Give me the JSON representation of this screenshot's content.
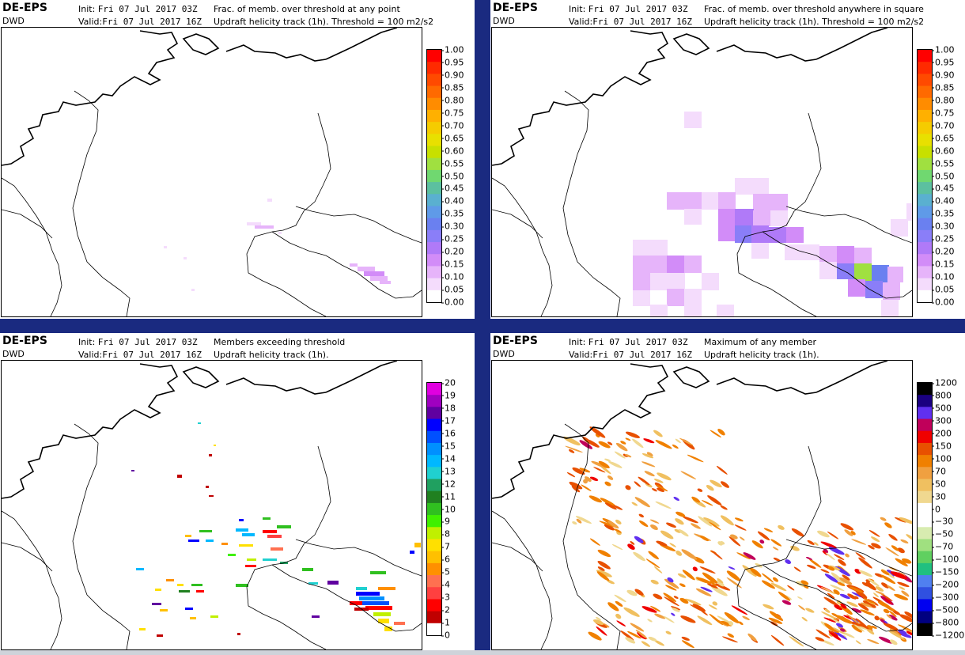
{
  "panels": [
    {
      "brand": "DE-EPS",
      "org": "DWD",
      "init_label": "Init:",
      "init_value": "Fri 07 Jul 2017 03Z",
      "valid_label": "Valid:",
      "valid_value": "Fri 07 Jul 2017 16Z",
      "line1": "Frac. of memb. over threshold at any point",
      "line2": "Updraft helicity track (1h). Threshold = 100 m2/s2",
      "colorbar": {
        "labels": [
          "1.00",
          "0.95",
          "0.90",
          "0.85",
          "0.80",
          "0.75",
          "0.70",
          "0.65",
          "0.60",
          "0.55",
          "0.50",
          "0.45",
          "0.40",
          "0.35",
          "0.30",
          "0.25",
          "0.20",
          "0.15",
          "0.10",
          "0.05",
          "0.00"
        ],
        "colors": [
          "#ff0000",
          "#ff2a00",
          "#ff4a00",
          "#ff6a00",
          "#ff8c00",
          "#ffb000",
          "#f5cc00",
          "#e8e000",
          "#c8e000",
          "#a0e040",
          "#70d870",
          "#5cc0a0",
          "#5ab0d0",
          "#5f9ae8",
          "#6a80f0",
          "#8a7ef8",
          "#b07af8",
          "#d28cf8",
          "#e6b4fa",
          "#f4dcfc",
          "#ffffff"
        ]
      }
    },
    {
      "brand": "DE-EPS",
      "org": "DWD",
      "init_label": "Init:",
      "init_value": "Fri 07 Jul 2017 03Z",
      "valid_label": "Valid:",
      "valid_value": "Fri 07 Jul 2017 16Z",
      "line1": "Frac. of memb. over threshold anywhere in square",
      "line2": "Updraft helicity track (1h). Threshold = 100 m2/s2",
      "colorbar": {
        "labels": [
          "1.00",
          "0.95",
          "0.90",
          "0.85",
          "0.80",
          "0.75",
          "0.70",
          "0.65",
          "0.60",
          "0.55",
          "0.50",
          "0.45",
          "0.40",
          "0.35",
          "0.30",
          "0.25",
          "0.20",
          "0.15",
          "0.10",
          "0.05",
          "0.00"
        ],
        "colors": [
          "#ff0000",
          "#ff2a00",
          "#ff4a00",
          "#ff6a00",
          "#ff8c00",
          "#ffb000",
          "#f5cc00",
          "#e8e000",
          "#c8e000",
          "#a0e040",
          "#70d870",
          "#5cc0a0",
          "#5ab0d0",
          "#5f9ae8",
          "#6a80f0",
          "#8a7ef8",
          "#b07af8",
          "#d28cf8",
          "#e6b4fa",
          "#f4dcfc",
          "#ffffff"
        ]
      }
    },
    {
      "brand": "DE-EPS",
      "org": "DWD",
      "init_label": "Init:",
      "init_value": "Fri 07 Jul 2017 03Z",
      "valid_label": "Valid:",
      "valid_value": "Fri 07 Jul 2017 16Z",
      "line1": "Members exceeding threshold",
      "line2": "Updraft helicity track (1h).",
      "colorbar": {
        "labels": [
          "20",
          "19",
          "18",
          "17",
          "16",
          "15",
          "14",
          "13",
          "12",
          "11",
          "10",
          "9",
          "8",
          "7",
          "6",
          "5",
          "4",
          "3",
          "2",
          "1",
          "0"
        ],
        "colors": [
          "#e000e0",
          "#a000c0",
          "#6000a0",
          "#0000ff",
          "#0050ff",
          "#0090ff",
          "#00b8ff",
          "#20d0d0",
          "#20a060",
          "#208020",
          "#30c020",
          "#40f000",
          "#c0f000",
          "#ffe000",
          "#ffc000",
          "#ff9000",
          "#ff7050",
          "#ff4040",
          "#ff0000",
          "#c00000",
          "#ffffff"
        ]
      }
    },
    {
      "brand": "DE-EPS",
      "org": "DWD",
      "init_label": "Init:",
      "init_value": "Fri 07 Jul 2017 03Z",
      "valid_label": "Valid:",
      "valid_value": "Fri 07 Jul 2017 16Z",
      "line1": "Maximum of any member",
      "line2": "Updraft helicity track (1h).",
      "colorbar": {
        "labels": [
          "1200",
          "800",
          "500",
          "300",
          "200",
          "150",
          "100",
          "70",
          "50",
          "30",
          "0",
          "−30",
          "−50",
          "−70",
          "−100",
          "−150",
          "−200",
          "−300",
          "−500",
          "−800",
          "−1200"
        ],
        "colors": [
          "#000000",
          "#1a0080",
          "#6030f0",
          "#c0005a",
          "#f00000",
          "#e85000",
          "#f08000",
          "#f0a040",
          "#f0c060",
          "#f0d890",
          "#ffffff",
          "#ffffff",
          "#d8ecb0",
          "#a0e080",
          "#60d060",
          "#20c080",
          "#5080f0",
          "#3050e0",
          "#0000f0",
          "#000080",
          "#000000"
        ]
      }
    }
  ]
}
